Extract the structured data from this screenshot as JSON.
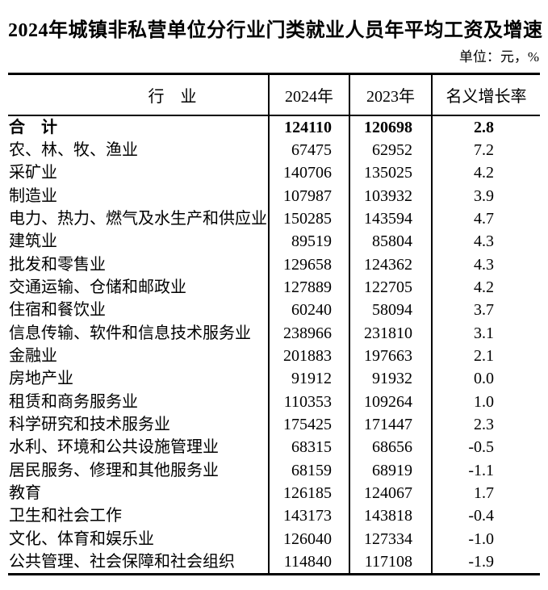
{
  "page": {
    "title": "2024年城镇非私营单位分行业门类就业人员年平均工资及增速",
    "unit_note": "单位：元，%"
  },
  "colors": {
    "text": "#000000",
    "background": "#ffffff",
    "table_border": "#000000"
  },
  "table": {
    "columns": [
      "行　业",
      "2024年",
      "2023年",
      "名义增长率"
    ],
    "rows": [
      {
        "industry": "合　计",
        "y2024": "124110",
        "y2023": "120698",
        "growth": "2.8",
        "bold": true
      },
      {
        "industry": "农、林、牧、渔业",
        "y2024": "67475",
        "y2023": "62952",
        "growth": "7.2",
        "bold": false
      },
      {
        "industry": "采矿业",
        "y2024": "140706",
        "y2023": "135025",
        "growth": "4.2",
        "bold": false
      },
      {
        "industry": "制造业",
        "y2024": "107987",
        "y2023": "103932",
        "growth": "3.9",
        "bold": false
      },
      {
        "industry": "电力、热力、燃气及水生产和供应业",
        "y2024": "150285",
        "y2023": "143594",
        "growth": "4.7",
        "bold": false
      },
      {
        "industry": "建筑业",
        "y2024": "89519",
        "y2023": "85804",
        "growth": "4.3",
        "bold": false
      },
      {
        "industry": "批发和零售业",
        "y2024": "129658",
        "y2023": "124362",
        "growth": "4.3",
        "bold": false
      },
      {
        "industry": "交通运输、仓储和邮政业",
        "y2024": "127889",
        "y2023": "122705",
        "growth": "4.2",
        "bold": false
      },
      {
        "industry": "住宿和餐饮业",
        "y2024": "60240",
        "y2023": "58094",
        "growth": "3.7",
        "bold": false
      },
      {
        "industry": "信息传输、软件和信息技术服务业",
        "y2024": "238966",
        "y2023": "231810",
        "growth": "3.1",
        "bold": false
      },
      {
        "industry": "金融业",
        "y2024": "201883",
        "y2023": "197663",
        "growth": "2.1",
        "bold": false
      },
      {
        "industry": "房地产业",
        "y2024": "91912",
        "y2023": "91932",
        "growth": "0.0",
        "bold": false
      },
      {
        "industry": "租赁和商务服务业",
        "y2024": "110353",
        "y2023": "109264",
        "growth": "1.0",
        "bold": false
      },
      {
        "industry": "科学研究和技术服务业",
        "y2024": "175425",
        "y2023": "171447",
        "growth": "2.3",
        "bold": false
      },
      {
        "industry": "水利、环境和公共设施管理业",
        "y2024": "68315",
        "y2023": "68656",
        "growth": "-0.5",
        "bold": false
      },
      {
        "industry": "居民服务、修理和其他服务业",
        "y2024": "68159",
        "y2023": "68919",
        "growth": "-1.1",
        "bold": false
      },
      {
        "industry": "教育",
        "y2024": "126185",
        "y2023": "124067",
        "growth": "1.7",
        "bold": false
      },
      {
        "industry": "卫生和社会工作",
        "y2024": "143173",
        "y2023": "143818",
        "growth": "-0.4",
        "bold": false
      },
      {
        "industry": "文化、体育和娱乐业",
        "y2024": "126040",
        "y2023": "127334",
        "growth": "-1.0",
        "bold": false
      },
      {
        "industry": "公共管理、社会保障和社会组织",
        "y2024": "114840",
        "y2023": "117108",
        "growth": "-1.9",
        "bold": false
      }
    ]
  }
}
